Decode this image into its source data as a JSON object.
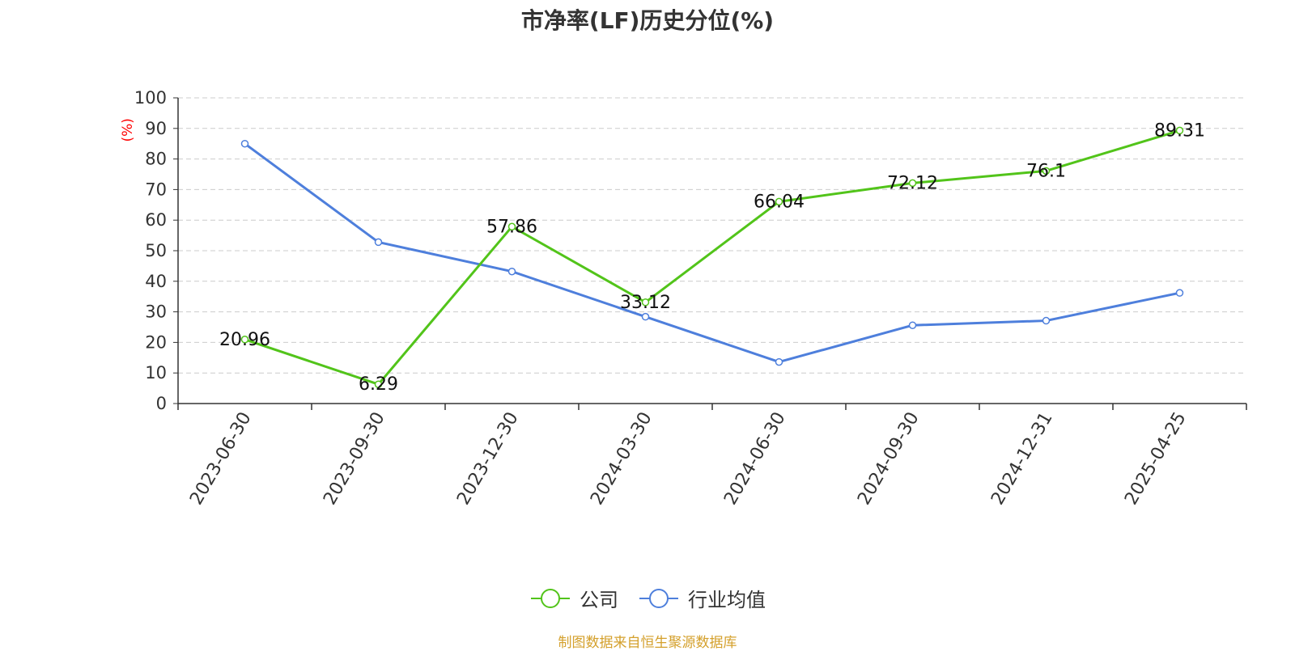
{
  "chart_data": {
    "type": "line",
    "title": "市净率(LF)历史分位(%)",
    "ylabel": "(%)",
    "xlabel": "",
    "ylim": [
      0,
      100
    ],
    "yticks": [
      0,
      10,
      20,
      30,
      40,
      50,
      60,
      70,
      80,
      90,
      100
    ],
    "categories": [
      "2023-06-30",
      "2023-09-30",
      "2023-12-30",
      "2024-03-30",
      "2024-06-30",
      "2024-09-30",
      "2024-12-31",
      "2025-04-25"
    ],
    "series": [
      {
        "name": "公司",
        "color": "#52c41a",
        "values": [
          20.96,
          6.29,
          57.86,
          33.12,
          66.04,
          72.12,
          76.1,
          89.31
        ],
        "labels": [
          "20.96",
          "6.29",
          "57.86",
          "33.12",
          "66.04",
          "72.12",
          "76.1",
          "89.31"
        ],
        "show_labels": true
      },
      {
        "name": "行业均值",
        "color": "#4e7fdc",
        "values": [
          85,
          52.8,
          43.2,
          28.4,
          13.6,
          25.6,
          27.1,
          36.2
        ],
        "show_labels": false
      }
    ],
    "grid": true,
    "legend_position": "bottom"
  },
  "source": "制图数据来自恒生聚源数据库"
}
